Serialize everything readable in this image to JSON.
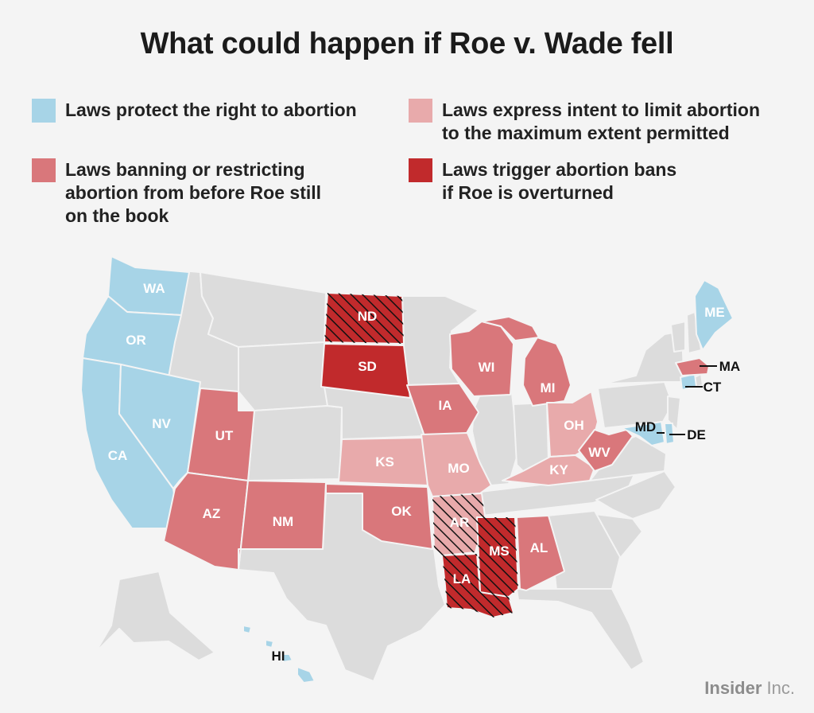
{
  "title": "What could happen if Roe v. Wade fell",
  "colors": {
    "protect": "#a7d4e7",
    "restrict_pre_roe": "#d9777b",
    "intent_limit": "#e8aaab",
    "trigger": "#c12a2c",
    "other": "#dcdcdc",
    "background": "#f4f4f4"
  },
  "legend": [
    {
      "category": "protect",
      "label": "Laws protect the right to abortion"
    },
    {
      "category": "intent_limit",
      "label": "Laws express intent to limit abortion\nto the maximum extent permitted"
    },
    {
      "category": "restrict_pre_roe",
      "label": "Laws banning or restricting\nabortion from before Roe still\non the book"
    },
    {
      "category": "trigger",
      "label": "Laws trigger abortion bans\nif Roe is overturned"
    }
  ],
  "states": [
    {
      "abbr": "WA",
      "category": "protect"
    },
    {
      "abbr": "OR",
      "category": "protect"
    },
    {
      "abbr": "CA",
      "category": "protect"
    },
    {
      "abbr": "NV",
      "category": "protect"
    },
    {
      "abbr": "UT",
      "category": "restrict_pre_roe"
    },
    {
      "abbr": "AZ",
      "category": "restrict_pre_roe"
    },
    {
      "abbr": "NM",
      "category": "restrict_pre_roe"
    },
    {
      "abbr": "ND",
      "category": "trigger",
      "hatched": true
    },
    {
      "abbr": "SD",
      "category": "trigger"
    },
    {
      "abbr": "KS",
      "category": "intent_limit"
    },
    {
      "abbr": "OK",
      "category": "restrict_pre_roe"
    },
    {
      "abbr": "IA",
      "category": "restrict_pre_roe"
    },
    {
      "abbr": "MO",
      "category": "intent_limit"
    },
    {
      "abbr": "AR",
      "category": "intent_limit",
      "hatched": true
    },
    {
      "abbr": "LA",
      "category": "trigger",
      "hatched": true
    },
    {
      "abbr": "MS",
      "category": "trigger",
      "hatched": true
    },
    {
      "abbr": "AL",
      "category": "restrict_pre_roe"
    },
    {
      "abbr": "WI",
      "category": "restrict_pre_roe"
    },
    {
      "abbr": "MI",
      "category": "restrict_pre_roe"
    },
    {
      "abbr": "OH",
      "category": "intent_limit"
    },
    {
      "abbr": "KY",
      "category": "intent_limit"
    },
    {
      "abbr": "WV",
      "category": "restrict_pre_roe"
    },
    {
      "abbr": "MD",
      "category": "protect"
    },
    {
      "abbr": "DE",
      "category": "protect"
    },
    {
      "abbr": "CT",
      "category": "protect"
    },
    {
      "abbr": "MA",
      "category": "restrict_pre_roe"
    },
    {
      "abbr": "ME",
      "category": "protect"
    },
    {
      "abbr": "HI",
      "category": "protect"
    }
  ],
  "credit": {
    "brand": "Insider",
    "suffix": " Inc."
  }
}
